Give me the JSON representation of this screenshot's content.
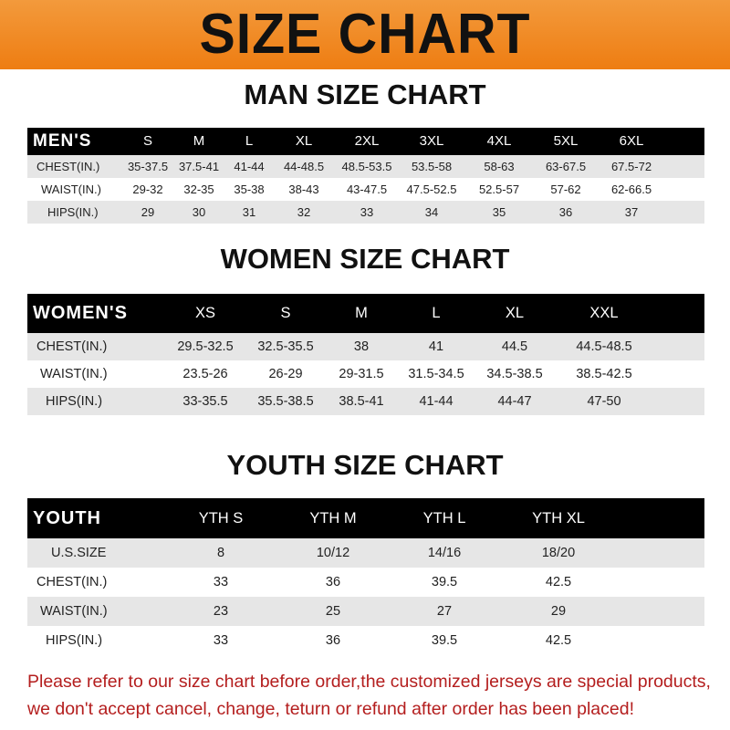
{
  "title": "SIZE CHART",
  "colors": {
    "banner": "#ee7d12",
    "header_row": "#000000",
    "stripe": "#e6e6e6",
    "note": "#b41e1e"
  },
  "men": {
    "heading": "MAN SIZE CHART",
    "label": "MEN'S",
    "sizes": [
      "S",
      "M",
      "L",
      "XL",
      "2XL",
      "3XL",
      "4XL",
      "5XL",
      "6XL"
    ],
    "rows": [
      {
        "label": "CHEST(IN.)",
        "values": [
          "35-37.5",
          "37.5-41",
          "41-44",
          "44-48.5",
          "48.5-53.5",
          "53.5-58",
          "58-63",
          "63-67.5",
          "67.5-72"
        ]
      },
      {
        "label": "WAIST(IN.)",
        "values": [
          "29-32",
          "32-35",
          "35-38",
          "38-43",
          "43-47.5",
          "47.5-52.5",
          "52.5-57",
          "57-62",
          "62-66.5"
        ]
      },
      {
        "label": "HIPS(IN.)",
        "values": [
          "29",
          "30",
          "31",
          "32",
          "33",
          "34",
          "35",
          "36",
          "37"
        ]
      }
    ]
  },
  "women": {
    "heading": "WOMEN SIZE CHART",
    "label": "WOMEN'S",
    "sizes": [
      "XS",
      "S",
      "M",
      "L",
      "XL",
      "XXL"
    ],
    "rows": [
      {
        "label": "CHEST(IN.)",
        "values": [
          "29.5-32.5",
          "32.5-35.5",
          "38",
          "41",
          "44.5",
          "44.5-48.5"
        ]
      },
      {
        "label": "WAIST(IN.)",
        "values": [
          "23.5-26",
          "26-29",
          "29-31.5",
          "31.5-34.5",
          "34.5-38.5",
          "38.5-42.5"
        ]
      },
      {
        "label": "HIPS(IN.)",
        "values": [
          "33-35.5",
          "35.5-38.5",
          "38.5-41",
          "41-44",
          "44-47",
          "47-50"
        ]
      }
    ]
  },
  "youth": {
    "heading": "YOUTH SIZE CHART",
    "label": "YOUTH",
    "sizes": [
      "YTH S",
      "YTH M",
      "YTH L",
      "YTH XL"
    ],
    "rows": [
      {
        "label": "U.S.SIZE",
        "values": [
          "8",
          "10/12",
          "14/16",
          "18/20"
        ]
      },
      {
        "label": "CHEST(IN.)",
        "values": [
          "33",
          "36",
          "39.5",
          "42.5"
        ]
      },
      {
        "label": "WAIST(IN.)",
        "values": [
          "23",
          "25",
          "27",
          "29"
        ]
      },
      {
        "label": "HIPS(IN.)",
        "values": [
          "33",
          "36",
          "39.5",
          "42.5"
        ]
      }
    ]
  },
  "note": [
    "Please refer to our size chart before order,the customized jerseys are special products,",
    "we don't accept cancel, change, teturn or refund after order has been placed!"
  ]
}
